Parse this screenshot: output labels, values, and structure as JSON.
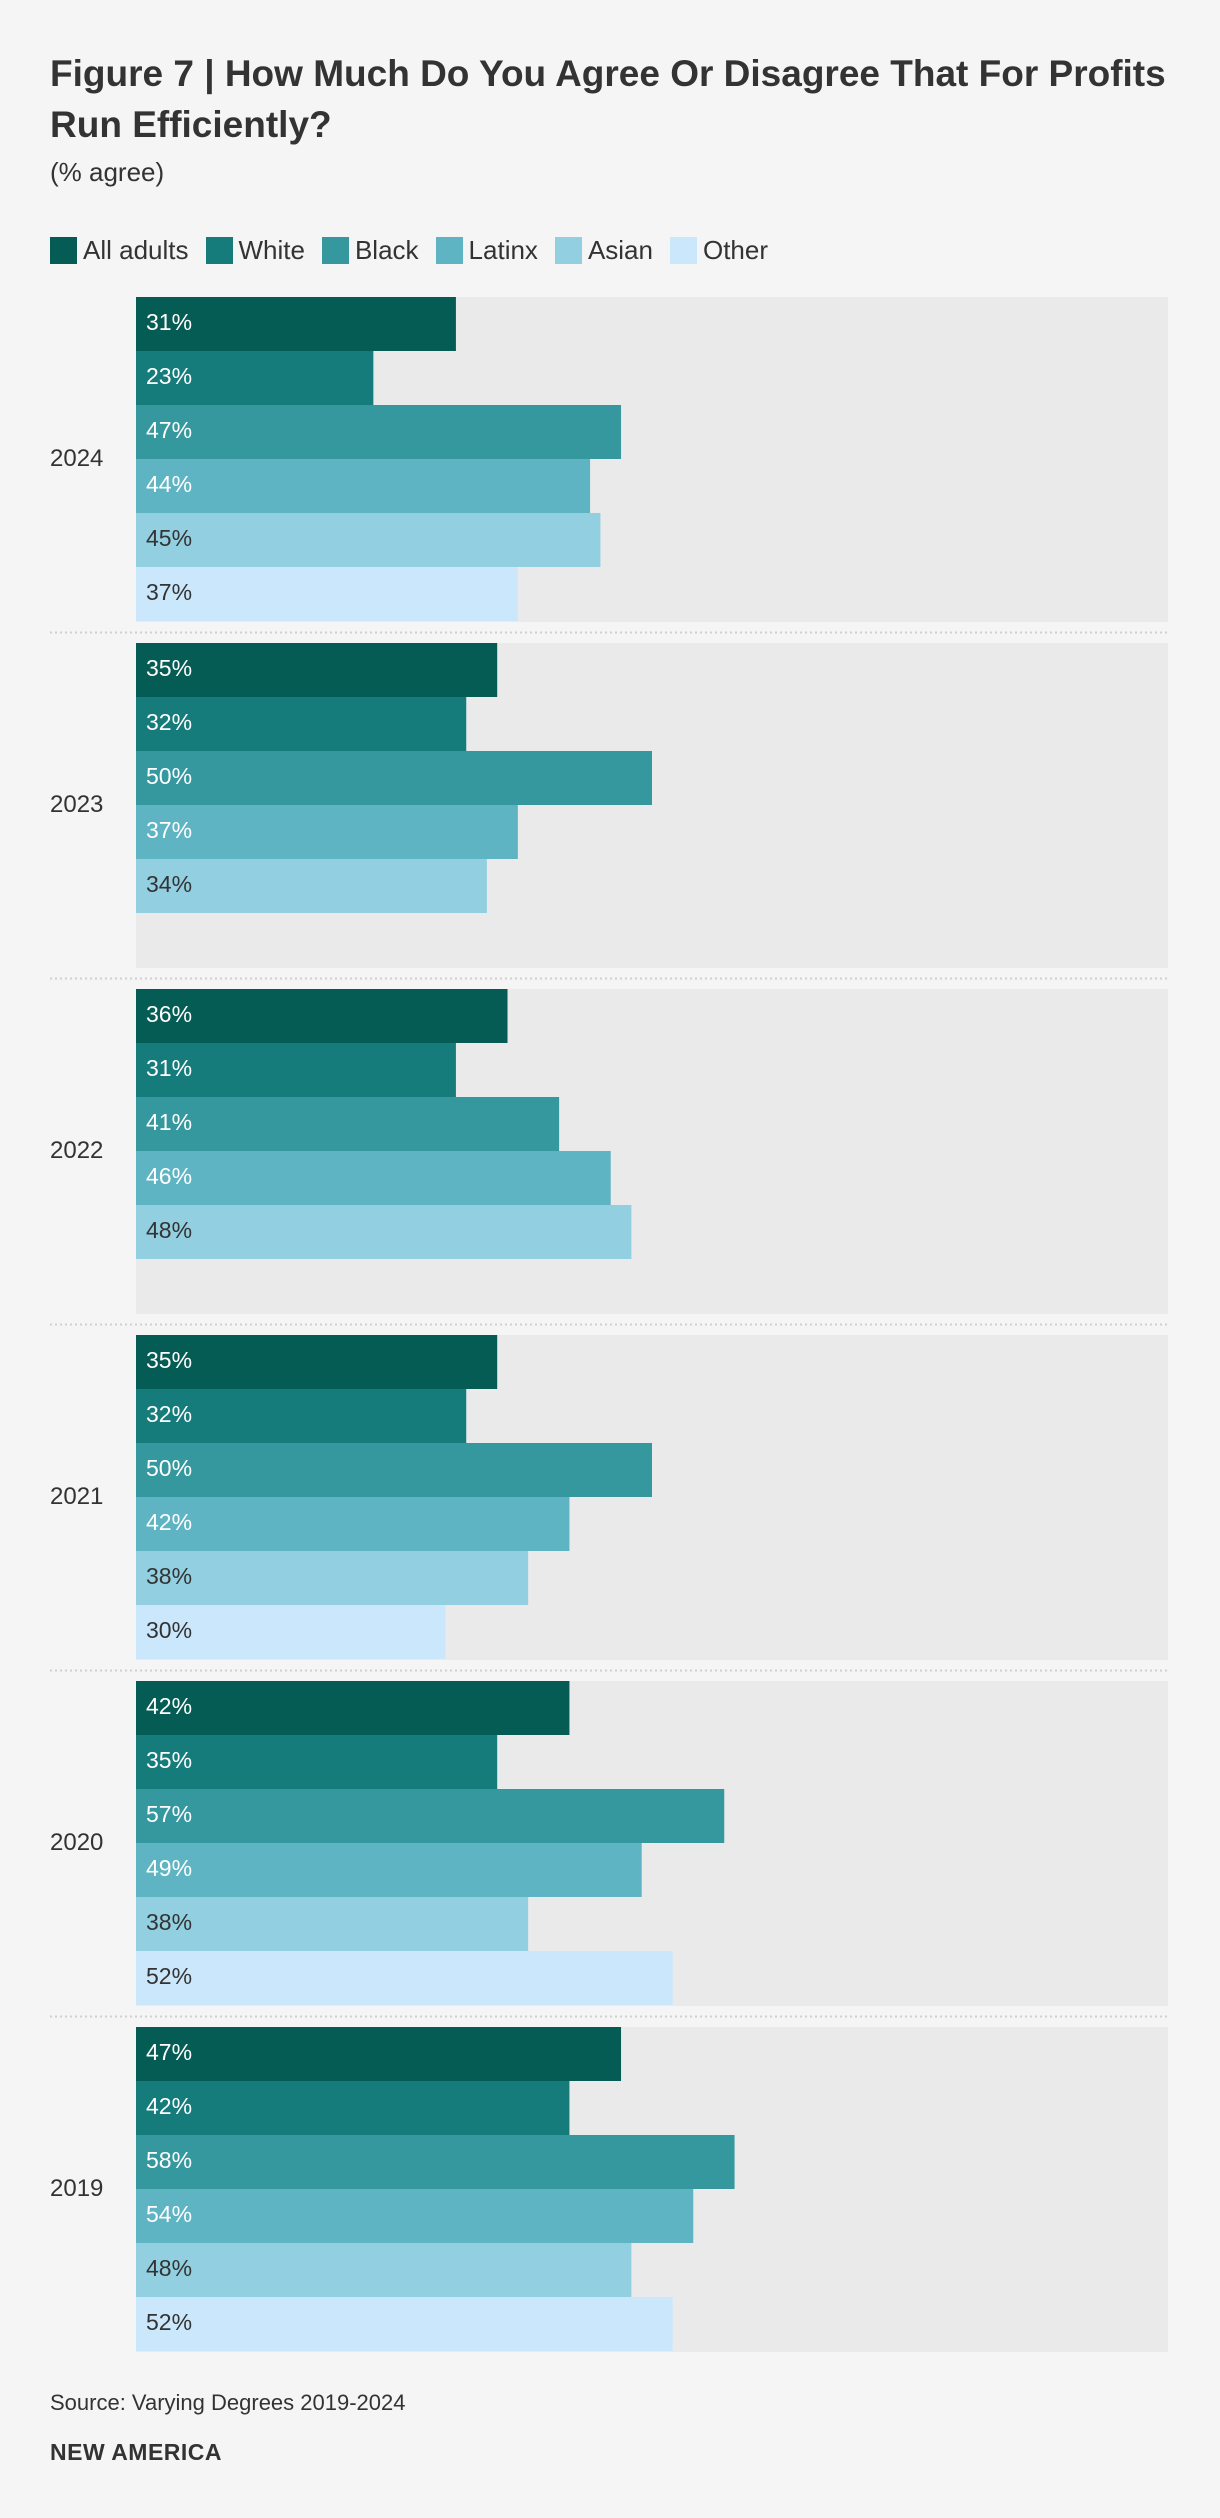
{
  "chart_data": {
    "type": "bar",
    "orientation": "horizontal",
    "title": "Figure 7 | How Much Do You Agree Or Disagree That For Profits Run Efficiently?",
    "subtitle": "(% agree)",
    "unit": "%",
    "xlim": [
      0,
      100
    ],
    "grid": false,
    "legend_placement": "top-left",
    "categories": [
      "2024",
      "2023",
      "2022",
      "2021",
      "2020",
      "2019"
    ],
    "series": [
      {
        "name": "All adults",
        "color": "#045c54",
        "values": [
          31,
          35,
          36,
          35,
          42,
          47
        ]
      },
      {
        "name": "White",
        "color": "#157b7b",
        "values": [
          23,
          32,
          31,
          32,
          35,
          42
        ]
      },
      {
        "name": "Black",
        "color": "#35989f",
        "values": [
          47,
          50,
          41,
          50,
          57,
          58
        ]
      },
      {
        "name": "Latinx",
        "color": "#5fb4c3",
        "values": [
          44,
          37,
          46,
          42,
          49,
          54
        ]
      },
      {
        "name": "Asian",
        "color": "#91cfe1",
        "values": [
          45,
          34,
          48,
          38,
          38,
          48
        ]
      },
      {
        "name": "Other",
        "color": "#cbe7fb",
        "values": [
          37,
          null,
          null,
          30,
          52,
          52
        ]
      }
    ],
    "label_colors": {
      "All adults": "#ffffff",
      "White": "#ffffff",
      "Black": "#ffffff",
      "Latinx": "#ffffff",
      "Asian": "#333333",
      "Other": "#333333"
    },
    "track_color": "#eaeaea",
    "separator_color": "#cfcfcf"
  },
  "source": "Source: Varying Degrees 2019-2024",
  "brand": "NEW AMERICA"
}
